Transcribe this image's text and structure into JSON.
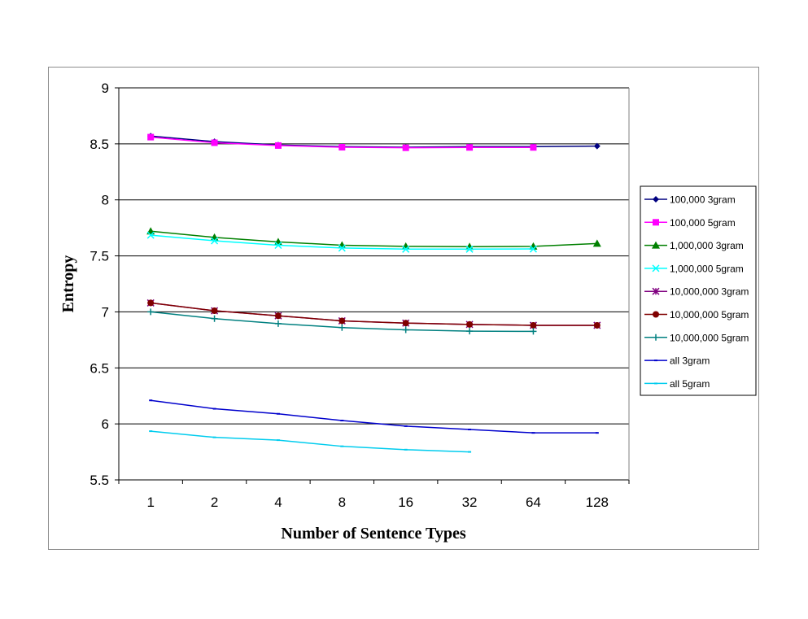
{
  "chart_data": {
    "type": "line",
    "title": "",
    "xlabel": "Number of Sentence Types",
    "ylabel": "Entropy",
    "categories": [
      "1",
      "2",
      "4",
      "8",
      "16",
      "32",
      "64",
      "128"
    ],
    "ylim": [
      5.5,
      9
    ],
    "yticks": [
      "5.5",
      "6",
      "6.5",
      "7",
      "7.5",
      "8",
      "8.5",
      "9"
    ],
    "grid": true,
    "legend_position": "right",
    "series": [
      {
        "name": "100,000 3gram",
        "color": "#000080",
        "marker": "diamond",
        "values": [
          8.57,
          8.52,
          8.49,
          8.475,
          8.47,
          8.475,
          8.475,
          8.48
        ]
      },
      {
        "name": "100,000 5gram",
        "color": "#ff00ff",
        "marker": "square",
        "values": [
          8.56,
          8.51,
          8.485,
          8.47,
          8.465,
          8.468,
          8.468,
          null
        ]
      },
      {
        "name": "1,000,000 3gram",
        "color": "#008000",
        "marker": "triangle",
        "values": [
          7.72,
          7.665,
          7.625,
          7.595,
          7.585,
          7.582,
          7.585,
          7.61
        ]
      },
      {
        "name": "1,000,000 5gram",
        "color": "#00ffff",
        "marker": "x",
        "values": [
          7.685,
          7.635,
          7.595,
          7.57,
          7.56,
          7.56,
          7.562,
          null
        ]
      },
      {
        "name": "10,000,000 3gram",
        "color": "#800080",
        "marker": "star",
        "values": [
          7.08,
          7.01,
          6.965,
          6.92,
          6.9,
          6.888,
          6.88,
          6.88
        ]
      },
      {
        "name": "10,000,000 5gram",
        "color": "#800000",
        "marker": "circle",
        "values": [
          7.08,
          7.01,
          6.965,
          6.92,
          6.9,
          6.888,
          6.88,
          6.88
        ]
      },
      {
        "name": "10,000,000 5gram",
        "color": "#008080",
        "marker": "plus",
        "values": [
          7.0,
          6.94,
          6.895,
          6.86,
          6.84,
          6.828,
          6.826,
          null
        ]
      },
      {
        "name": "all 3gram",
        "color": "#0000cc",
        "marker": "dash",
        "values": [
          6.21,
          6.135,
          6.09,
          6.03,
          5.98,
          5.95,
          5.92,
          5.92
        ]
      },
      {
        "name": "all 5gram",
        "color": "#00ccee",
        "marker": "dash",
        "values": [
          5.935,
          5.88,
          5.855,
          5.8,
          5.77,
          5.75,
          null,
          null
        ]
      }
    ]
  }
}
